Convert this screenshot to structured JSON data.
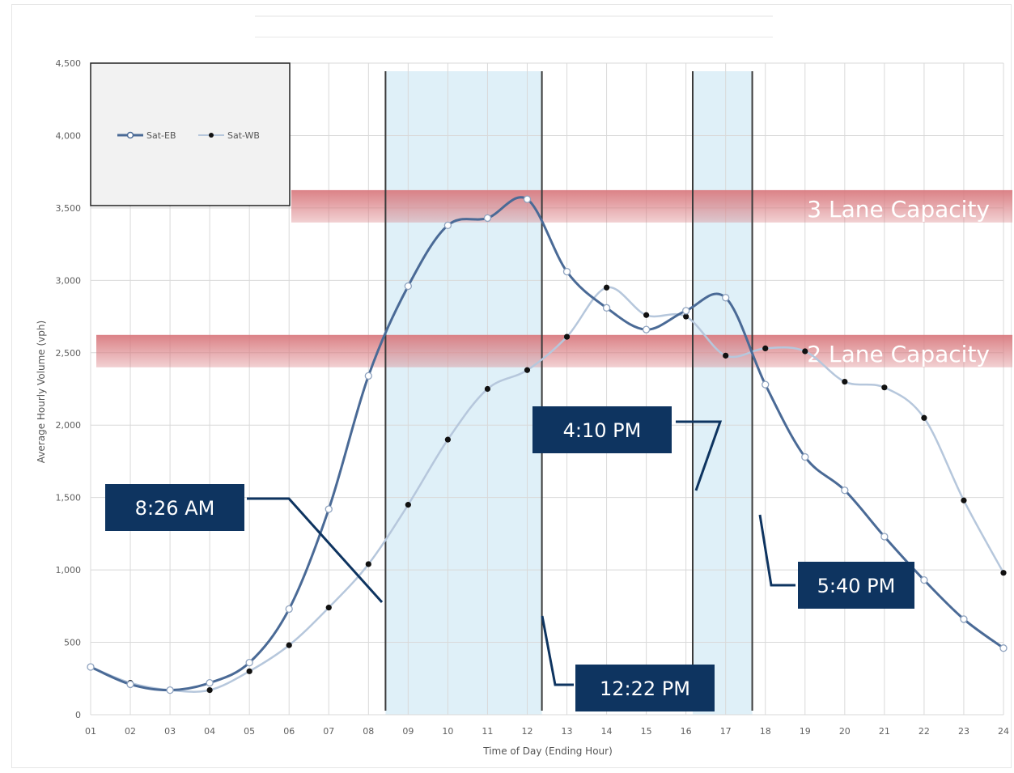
{
  "chart_data": {
    "type": "line",
    "title": "",
    "xlabel": "Time of Day (Ending Hour)",
    "ylabel": "Average Hourly Volume (vph)",
    "categories": [
      "01",
      "02",
      "03",
      "04",
      "05",
      "06",
      "07",
      "08",
      "09",
      "10",
      "11",
      "12",
      "13",
      "14",
      "15",
      "16",
      "17",
      "18",
      "19",
      "20",
      "21",
      "22",
      "23",
      "24"
    ],
    "ylim": [
      0,
      4500
    ],
    "yticks": [
      0,
      500,
      1000,
      1500,
      2000,
      2500,
      3000,
      3500,
      4000,
      4500
    ],
    "ytick_labels": [
      "0",
      "500",
      "1,000",
      "1,500",
      "2,000",
      "2,500",
      "3,000",
      "3,500",
      "4,000",
      "4,500"
    ],
    "grid": true,
    "legend_position": "top-left",
    "series": [
      {
        "name": "Sat-EB",
        "color": "#4a6a96",
        "marker": "open-circle",
        "values": [
          330,
          210,
          170,
          220,
          360,
          730,
          1420,
          2340,
          2960,
          3380,
          3430,
          3560,
          3060,
          2810,
          2660,
          2790,
          2880,
          2280,
          1780,
          1550,
          1230,
          930,
          660,
          460
        ]
      },
      {
        "name": "Sat-WB",
        "color": "#b6c7dc",
        "marker": "filled-dot",
        "values": [
          330,
          220,
          170,
          170,
          300,
          480,
          740,
          1040,
          1450,
          1900,
          2250,
          2380,
          2610,
          2950,
          2760,
          2750,
          2480,
          2530,
          2510,
          2300,
          2260,
          2050,
          1480,
          980
        ]
      }
    ],
    "capacity_bands": [
      {
        "label": "3 Lane Capacity",
        "value": 3500,
        "color": "#d97b80"
      },
      {
        "label": "2 Lane Capacity",
        "value": 2500,
        "color": "#d97b80"
      }
    ],
    "shaded_periods": [
      {
        "start": 8.43,
        "end": 12.37,
        "color": "#dff0f8"
      },
      {
        "start": 16.17,
        "end": 17.67,
        "color": "#dff0f8"
      }
    ],
    "callouts": [
      {
        "label": "8:26 AM",
        "value": 8.43
      },
      {
        "label": "12:22 PM",
        "value": 12.37
      },
      {
        "label": "4:10 PM",
        "value": 16.17
      },
      {
        "label": "5:40 PM",
        "value": 17.67
      }
    ],
    "callout_color": "#0e3460"
  }
}
